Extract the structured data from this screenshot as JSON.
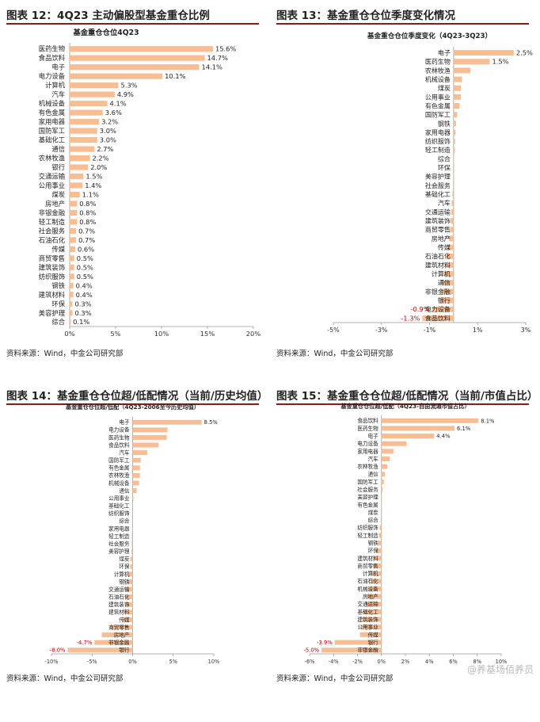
{
  "colors": {
    "bar": "#f7bd93",
    "negative_label": "#c00000",
    "title_rule": "#8a1c1c",
    "axis": "#9a9a9a"
  },
  "source_text": "资料来源：Wind，中金公司研究部",
  "watermark": "@养基场佰养员",
  "panels": [
    {
      "title": "图表 12：4Q23 主动偏股型基金重仓比例"
    },
    {
      "title": "图表 13：基金重仓仓位季度变化情况"
    },
    {
      "title": "图表 14：基金重仓仓位超/低配情况（当前/历史均值）"
    },
    {
      "title": "图表 15：基金重仓仓位超/低配情况（当前/市值占比）"
    }
  ],
  "chart_data": [
    {
      "type": "bar",
      "orientation": "horizontal",
      "title": "基金重仓仓位4Q23",
      "categories": [
        "医药生物",
        "食品饮料",
        "电子",
        "电力设备",
        "计算机",
        "汽车",
        "机械设备",
        "有色金属",
        "家用电器",
        "国防军工",
        "基础化工",
        "通信",
        "农林牧渔",
        "银行",
        "交通运输",
        "公用事业",
        "煤炭",
        "房地产",
        "非银金融",
        "轻工制造",
        "社会服务",
        "石油石化",
        "传媒",
        "商贸零售",
        "建筑装饰",
        "纺织服饰",
        "钢铁",
        "建筑材料",
        "环保",
        "美容护理",
        "综合"
      ],
      "values": [
        15.6,
        14.7,
        14.1,
        10.1,
        5.3,
        4.9,
        4.1,
        3.6,
        3.2,
        3.0,
        3.0,
        2.7,
        2.2,
        2.0,
        1.5,
        1.4,
        1.1,
        0.8,
        0.8,
        0.8,
        0.7,
        0.7,
        0.6,
        0.5,
        0.5,
        0.5,
        0.4,
        0.4,
        0.3,
        0.3,
        0.1
      ],
      "value_labels": [
        "15.6%",
        "14.7%",
        "14.1%",
        "10.1%",
        "5.3%",
        "4.9%",
        "4.1%",
        "3.6%",
        "3.2%",
        "3.0%",
        "3.0%",
        "2.7%",
        "2.2%",
        "2.0%",
        "1.5%",
        "1.4%",
        "1.1%",
        "0.8%",
        "0.8%",
        "0.8%",
        "0.7%",
        "0.7%",
        "0.6%",
        "0.5%",
        "0.5%",
        "0.5%",
        "0.4%",
        "0.4%",
        "0.3%",
        "0.3%",
        "0.1%"
      ],
      "xlim": [
        0,
        20
      ],
      "xticks": [
        0,
        5,
        10,
        15,
        20
      ],
      "xtick_labels": [
        "0%",
        "5%",
        "10%",
        "15%",
        "20%"
      ],
      "grid": false
    },
    {
      "type": "bar",
      "orientation": "horizontal",
      "title": "基金重仓仓位季度变化（4Q23-3Q23）",
      "categories": [
        "电子",
        "医药生物",
        "农林牧渔",
        "机械设备",
        "煤炭",
        "公用事业",
        "有色金属",
        "国防军工",
        "钢铁",
        "家用电器",
        "纺织服饰",
        "轻工制造",
        "综合",
        "环保",
        "美容护理",
        "社会服务",
        "基础化工",
        "汽车",
        "交通运输",
        "建筑装饰",
        "商贸零售",
        "房地产",
        "传媒",
        "石油石化",
        "建筑材料",
        "计算机",
        "通信",
        "非银金融",
        "银行",
        "电力设备",
        "食品饮料"
      ],
      "values": [
        2.5,
        1.5,
        0.7,
        0.35,
        0.3,
        0.3,
        0.25,
        0.15,
        0.1,
        0.08,
        0.06,
        0.05,
        0.02,
        0.01,
        0.0,
        -0.02,
        -0.05,
        -0.08,
        -0.1,
        -0.12,
        -0.15,
        -0.2,
        -0.25,
        -0.3,
        -0.32,
        -0.4,
        -0.45,
        -0.5,
        -0.55,
        -0.9,
        -1.3
      ],
      "value_labels": [
        "2.5%",
        "1.5%",
        "",
        "",
        "",
        "",
        "",
        "",
        "",
        "",
        "",
        "",
        "",
        "",
        "",
        "",
        "",
        "",
        "",
        "",
        "",
        "",
        "",
        "",
        "",
        "",
        "",
        "",
        "",
        "-0.9%",
        "-1.3%"
      ],
      "xlim": [
        -5,
        3
      ],
      "xticks": [
        -5,
        -3,
        -1,
        1,
        3
      ],
      "xtick_labels": [
        "-5%",
        "-3%",
        "-1%",
        "1%",
        "3%"
      ],
      "grid": false
    },
    {
      "type": "bar",
      "orientation": "horizontal",
      "title": "基金重仓仓位超/低配（4Q23-2006至今历史均值）",
      "categories": [
        "电子",
        "电力设备",
        "医药生物",
        "食品饮料",
        "汽车",
        "国防军工",
        "有色金属",
        "农林牧渔",
        "机械设备",
        "通信",
        "公用事业",
        "基础化工",
        "纺织服饰",
        "综合",
        "家用电器",
        "轻工制造",
        "社会服务",
        "美容护理",
        "煤炭",
        "环保",
        "计算机",
        "钢铁",
        "交通运输",
        "石油石化",
        "建筑装饰",
        "建筑材料",
        "传媒",
        "商贸零售",
        "房地产",
        "非银金融",
        "银行"
      ],
      "values": [
        8.5,
        4.3,
        4.2,
        3.2,
        1.8,
        1.0,
        0.9,
        0.9,
        0.8,
        0.5,
        0.1,
        0.05,
        0.02,
        0.0,
        -0.05,
        -0.1,
        -0.1,
        -0.15,
        -0.3,
        -0.3,
        -0.6,
        -0.6,
        -0.8,
        -0.9,
        -0.9,
        -1.0,
        -1.2,
        -2.7,
        -3.8,
        -4.7,
        -8.0
      ],
      "value_labels": [
        "8.5%",
        "",
        "",
        "",
        "",
        "",
        "",
        "",
        "",
        "",
        "",
        "",
        "",
        "",
        "",
        "",
        "",
        "",
        "",
        "",
        "",
        "",
        "",
        "",
        "",
        "",
        "",
        "",
        "",
        "-4.7%",
        "-8.0%"
      ],
      "xlim": [
        -10,
        10
      ],
      "xticks": [
        -10,
        -5,
        0,
        5,
        10
      ],
      "xtick_labels": [
        "-10%",
        "-5%",
        "0%",
        "5%",
        "10%"
      ],
      "grid": false
    },
    {
      "type": "bar",
      "orientation": "horizontal",
      "title": "基金重仓仓位超/低配（4Q23-自由流通市值占比）",
      "categories": [
        "食品饮料",
        "医药生物",
        "电子",
        "电力设备",
        "家用电器",
        "汽车",
        "农林牧渔",
        "通信",
        "国防军工",
        "社会服务",
        "美容护理",
        "有色金属",
        "煤炭",
        "综合",
        "纺织服饰",
        "轻工制造",
        "钢铁",
        "环保",
        "建筑材料",
        "商贸零售",
        "计算机",
        "石油石化",
        "机械设备",
        "房地产",
        "交通运输",
        "基础化工",
        "建筑装饰",
        "公用事业",
        "传媒",
        "银行",
        "非银金融"
      ],
      "values": [
        8.1,
        6.1,
        4.4,
        2.1,
        1.0,
        0.7,
        0.5,
        0.3,
        0.2,
        0.1,
        0.05,
        0.02,
        0.0,
        -0.05,
        -0.15,
        -0.2,
        -0.3,
        -0.4,
        -0.6,
        -0.7,
        -0.8,
        -0.9,
        -1.1,
        -1.2,
        -1.3,
        -1.5,
        -1.6,
        -1.7,
        -1.8,
        -3.9,
        -5.0
      ],
      "value_labels": [
        "8.1%",
        "6.1%",
        "4.4%",
        "",
        "",
        "",
        "",
        "",
        "",
        "",
        "",
        "",
        "",
        "",
        "",
        "",
        "",
        "",
        "",
        "",
        "",
        "",
        "",
        "",
        "",
        "",
        "",
        "",
        "",
        "-3.9%",
        "-5.0%"
      ],
      "xlim": [
        -6,
        10
      ],
      "xticks": [
        -6,
        -4,
        -2,
        0,
        2,
        4,
        6,
        8,
        10
      ],
      "xtick_labels": [
        "-6%",
        "-4%",
        "-2%",
        "0%",
        "2%",
        "4%",
        "6%",
        "8%",
        "10%"
      ],
      "grid": false
    }
  ]
}
